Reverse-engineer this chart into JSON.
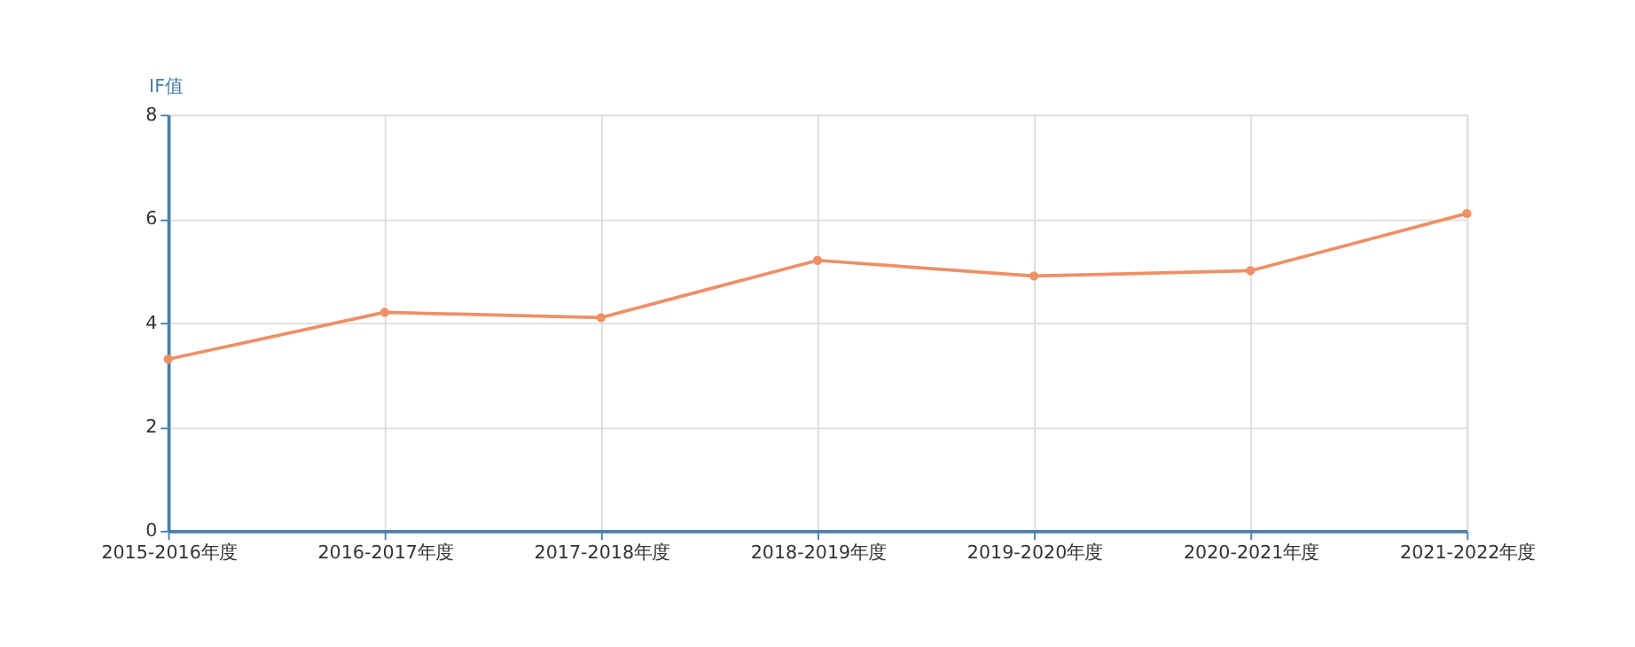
{
  "chart_data": {
    "type": "line",
    "ylabel": "IF值",
    "categories": [
      "2015-2016年度",
      "2016-2017年度",
      "2017-2018年度",
      "2018-2019年度",
      "2019-2020年度",
      "2020-2021年度",
      "2021-2022年度"
    ],
    "series": [
      {
        "color": "#ee8f66",
        "values": [
          3.3,
          4.2,
          4.1,
          5.2,
          4.9,
          5.0,
          6.1
        ]
      }
    ],
    "ylim": [
      0,
      8
    ],
    "yticks": [
      0,
      2,
      4,
      6,
      8
    ],
    "grid": true,
    "marker": "circle",
    "line_style": "solid"
  }
}
